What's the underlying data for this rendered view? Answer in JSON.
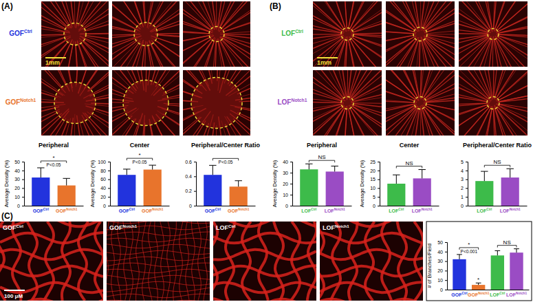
{
  "figure": {
    "panels": [
      {
        "label": "(A)",
        "rows": [
          "GOFCtrl",
          "GOFNotch1"
        ],
        "colors": [
          "#2233dd",
          "#e8742c"
        ],
        "scale_bar": "1mm"
      },
      {
        "label": "(B)",
        "rows": [
          "LOFCtrl",
          "LOFNotch1"
        ],
        "colors": [
          "#3dbb4a",
          "#9a4cc4"
        ],
        "scale_bar": "1mm"
      },
      {
        "label": "(C)",
        "images": [
          "GOFCtrl",
          "GOFNotch1",
          "LOFCtrl",
          "LOFNotch1"
        ],
        "scale_bar": "100 μM"
      }
    ]
  },
  "chart_data": [
    {
      "type": "bar",
      "title": "Peripheral",
      "ylabel": "Average Density (%)",
      "categories": [
        "GOFCtrl",
        "GOFNotch1"
      ],
      "values": [
        32,
        23
      ],
      "errors": [
        11,
        8
      ],
      "colors": [
        "#2233dd",
        "#e8742c"
      ],
      "ylim": [
        0,
        50
      ],
      "yticks": [
        0,
        10,
        20,
        30,
        40,
        50
      ],
      "annotations": [
        {
          "between": [
            "GOFCtrl",
            "GOFNotch1"
          ],
          "above": "*",
          "below": "P<0.05"
        }
      ]
    },
    {
      "type": "bar",
      "title": "Center",
      "ylabel": "Average Density (%)",
      "categories": [
        "GOFCtrl",
        "GOFNotch1"
      ],
      "values": [
        70,
        82
      ],
      "errors": [
        13,
        10
      ],
      "colors": [
        "#2233dd",
        "#e8742c"
      ],
      "ylim": [
        0,
        100
      ],
      "yticks": [
        0,
        20,
        40,
        60,
        80,
        100
      ],
      "annotations": [
        {
          "between": [
            "GOFCtrl",
            "GOFNotch1"
          ],
          "above": "*",
          "below": "P<0.05"
        }
      ]
    },
    {
      "type": "bar",
      "title": "Peripheral/Center Ratio",
      "categories": [
        "GOFCtrl",
        "GOFNotch1"
      ],
      "values": [
        0.42,
        0.26
      ],
      "errors": [
        0.13,
        0.08
      ],
      "colors": [
        "#2233dd",
        "#e8742c"
      ],
      "ylim": [
        0,
        0.6
      ],
      "yticks": [
        0,
        0.2,
        0.4,
        0.6
      ],
      "annotations": [
        {
          "between": [
            "GOFCtrl",
            "GOFNotch1"
          ],
          "below": "P<0.05"
        }
      ]
    },
    {
      "type": "bar",
      "title": "Peripheral",
      "ylabel": "Average Density (%)",
      "categories": [
        "LOFCtrl",
        "LOFNotch1"
      ],
      "values": [
        33,
        31
      ],
      "errors": [
        5,
        5
      ],
      "colors": [
        "#3dbb4a",
        "#9a4cc4"
      ],
      "ylim": [
        0,
        40
      ],
      "yticks": [
        0,
        10,
        20,
        30,
        40
      ],
      "annotations": [
        {
          "between": [
            "LOFCtrl",
            "LOFNotch1"
          ],
          "above": "NS"
        }
      ]
    },
    {
      "type": "bar",
      "title": "Center",
      "ylabel": "Average Density (%)",
      "categories": [
        "LOFCtrl",
        "LOFNotch1"
      ],
      "values": [
        12.5,
        15.5
      ],
      "errors": [
        5,
        5
      ],
      "colors": [
        "#3dbb4a",
        "#9a4cc4"
      ],
      "ylim": [
        0,
        25
      ],
      "yticks": [
        0,
        5,
        10,
        15,
        20,
        25
      ],
      "annotations": [
        {
          "between": [
            "LOFCtrl",
            "LOFNotch1"
          ],
          "above": "NS"
        }
      ]
    },
    {
      "type": "bar",
      "title": "Peripheral/Center Ratio",
      "categories": [
        "LOFCtrl",
        "LOFNotch1"
      ],
      "values": [
        2.8,
        3.2
      ],
      "errors": [
        1.1,
        1.0
      ],
      "colors": [
        "#3dbb4a",
        "#9a4cc4"
      ],
      "ylim": [
        0,
        5
      ],
      "yticks": [
        0,
        1,
        2,
        3,
        4,
        5
      ],
      "annotations": [
        {
          "between": [
            "LOFCtrl",
            "LOFNotch1"
          ],
          "above": "NS"
        }
      ]
    },
    {
      "type": "bar",
      "ylabel": "# of Branches/Field",
      "categories": [
        "GOFCtrl",
        "GOFNotch1",
        "LOFCtrl",
        "LOFNotch1"
      ],
      "values": [
        32,
        5,
        36,
        39
      ],
      "errors": [
        5,
        2,
        5,
        4
      ],
      "colors": [
        "#2233dd",
        "#e8742c",
        "#3dbb4a",
        "#9a4cc4"
      ],
      "ylim": [
        0,
        50
      ],
      "yticks": [
        0,
        10,
        20,
        30,
        40,
        50
      ],
      "annotations": [
        {
          "between": [
            "GOFCtrl",
            "GOFNotch1"
          ],
          "above": "*",
          "below": "P<0.001"
        },
        {
          "at": "GOFNotch1",
          "above": "*"
        },
        {
          "between": [
            "LOFCtrl",
            "LOFNotch1"
          ],
          "above": "NS"
        }
      ]
    }
  ]
}
